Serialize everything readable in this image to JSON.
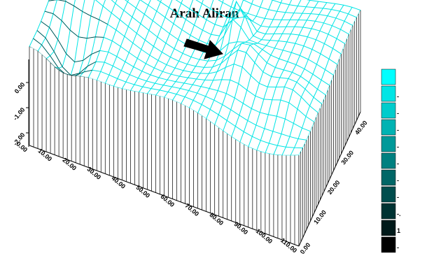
{
  "chart_data": {
    "type": "surface",
    "title": "Arah Aliran",
    "annotation": {
      "label": "Arah Aliran",
      "shape": "arrow",
      "color": "#000000"
    },
    "surface_color": "#00e5e5",
    "walls_color": "#000000",
    "x_ticks": [
      "0.00",
      "10.00",
      "20.00",
      "30.00",
      "40.00",
      "50.00",
      "60.00",
      "70.00",
      "80.00",
      "90.00",
      "100.00",
      "110.00"
    ],
    "x_range": [
      0,
      110
    ],
    "y_ticks": [
      "0.00",
      "10.00",
      "20.00",
      "30.00",
      "40.00"
    ],
    "y_range": [
      0,
      45
    ],
    "z_ticks": [
      "0.00",
      "-1.00",
      "-2.00"
    ],
    "z_range": [
      -2,
      0
    ],
    "colorbar": {
      "colors": [
        "#00ffff",
        "#00e5e5",
        "#00cccc",
        "#00b3b3",
        "#009999",
        "#008080",
        "#006666",
        "#004d4d",
        "#003333",
        "#001a1a",
        "#000000"
      ],
      "labels": [
        "",
        "-",
        "-",
        "-",
        "-",
        "-",
        "-",
        "-",
        "-.",
        "1",
        "-"
      ]
    }
  }
}
